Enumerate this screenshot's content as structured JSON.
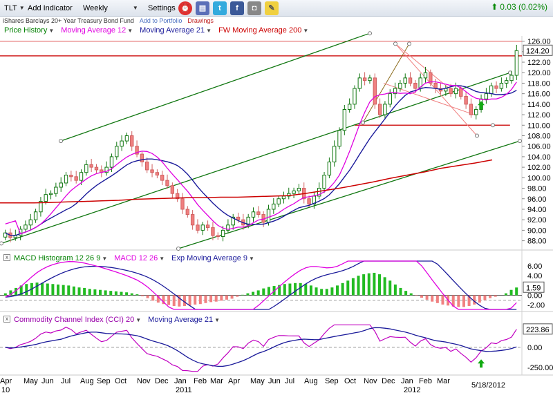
{
  "toolbar": {
    "symbol": "TLT",
    "add_indicator": "Add Indicator",
    "period": "Weekly",
    "settings": "Settings",
    "change": "0.03 (0.02%)"
  },
  "subbar": {
    "fund_name": "iShares Barclays 20+ Year Treasury Bond Fund",
    "add_portfolio": "Add to Portfolio",
    "drawings": "Drawings"
  },
  "legend_main": [
    "Price History",
    "Moving Average 12",
    "Moving Average 21",
    "FW Moving Average 200"
  ],
  "legend_macd": [
    "MACD Histogram 12 26 9",
    "MACD 12 26",
    "Exp Moving Average 9"
  ],
  "legend_cci": [
    "Commodity Channel Index (CCI) 20",
    "Moving Average 21"
  ],
  "panel_boxes": {
    "macd": "x",
    "cci": "x"
  },
  "colors": {
    "price": "#008000",
    "ma12": "#e000e0",
    "ma21": "#1a1a9a",
    "ma200": "#cc0000",
    "up_candle": "#22aa22",
    "down_candle": "#f08080",
    "histogram_up": "#22bb22",
    "histogram_down": "#f08080"
  },
  "chart_data": [
    {
      "type": "candlestick",
      "title": "Price History",
      "y_ticks": [
        88,
        90,
        92,
        94,
        96,
        98,
        100,
        102,
        104,
        106,
        108,
        110,
        112,
        114,
        116,
        118,
        120,
        122,
        124,
        126
      ],
      "ylim": [
        86.5,
        127
      ],
      "last_price": "124.20",
      "x_labels": [
        "Apr",
        "May",
        "Jun",
        "Jul",
        "Aug",
        "Sep",
        "Oct",
        "Nov",
        "Dec",
        "Jan",
        "Feb",
        "Mar",
        "Apr",
        "May",
        "Jun",
        "Jul",
        "Aug",
        "Sep",
        "Oct",
        "Nov",
        "Dec",
        "Jan",
        "Feb",
        "Mar"
      ],
      "years": [
        "10",
        "2011",
        "2012"
      ],
      "date_flag": "5/18/2012",
      "closes": [
        89.5,
        88.6,
        89.0,
        90.2,
        91.0,
        92.0,
        93.5,
        95.5,
        96.8,
        97.0,
        98.2,
        99.0,
        100.5,
        100.2,
        99.5,
        101.0,
        102.5,
        102.0,
        101.5,
        101.0,
        102.0,
        104.0,
        106.0,
        107.0,
        108.0,
        106.0,
        104.5,
        103.0,
        101.5,
        101.0,
        100.5,
        99.5,
        98.5,
        97.0,
        96.0,
        94.0,
        93.0,
        91.0,
        90.0,
        91.0,
        90.5,
        89.0,
        88.8,
        90.0,
        91.0,
        92.5,
        92.0,
        91.0,
        92.5,
        93.5,
        93.0,
        91.5,
        94.0,
        95.0,
        96.0,
        96.5,
        97.0,
        97.5,
        98.0,
        96.0,
        95.0,
        96.5,
        98.0,
        100.5,
        103.0,
        106.0,
        109.0,
        113.0,
        114.0,
        117.0,
        119.0,
        118.5,
        119.0,
        114.0,
        112.0,
        114.0,
        116.0,
        117.0,
        118.0,
        119.0,
        118.0,
        117.0,
        119.0,
        120.0,
        118.0,
        117.0,
        116.5,
        117.0,
        116.0,
        117.0,
        115.5,
        114.0,
        112.0,
        113.0,
        115.0,
        116.0,
        117.5,
        117.0,
        118.0,
        118.5,
        119.5,
        124.2
      ],
      "ma12_start": 91.2,
      "ma200": [
        95.2,
        95.2,
        95.2,
        95.3,
        95.4,
        95.5,
        95.6,
        95.7,
        95.9,
        96.0,
        96.1,
        96.2,
        96.2,
        96.3,
        96.3,
        96.4,
        96.5,
        96.6,
        97.0,
        97.5,
        98.0,
        98.6,
        99.2,
        99.9,
        100.5,
        101.1,
        101.8,
        102.3,
        102.8,
        103.4
      ]
    },
    {
      "type": "bar",
      "title": "MACD Histogram 12 26 9",
      "y_ticks": [
        6.0,
        4.0,
        2.0,
        0.0,
        -2.0
      ],
      "ylim": [
        -2.9,
        7
      ],
      "last_value": "1.59",
      "series": [
        {
          "name": "MACD Histogram",
          "values": [
            0.4,
            1.0,
            1.5,
            2.0,
            2.3,
            2.5,
            2.6,
            2.5,
            2.4,
            2.3,
            2.2,
            2.1,
            2.0,
            1.8,
            1.6,
            1.5,
            1.3,
            1.2,
            1.1,
            1.0,
            0.9,
            0.8,
            0.7,
            0.6,
            0.4,
            0.2,
            -0.2,
            -0.6,
            -1.1,
            -1.5,
            -1.8,
            -2.0,
            -2.2,
            -2.3,
            -2.2,
            -2.1,
            -1.9,
            -1.8,
            -1.6,
            -1.4,
            -1.3,
            -1.1,
            -0.9,
            -0.7,
            -0.3,
            0.1,
            0.4,
            0.7,
            1.0,
            1.4,
            1.7,
            1.9,
            2.1,
            2.3,
            2.4,
            2.5,
            2.5,
            2.3,
            2.0,
            1.6,
            1.3,
            1.3,
            1.6,
            2.0,
            2.5,
            3.0,
            3.5,
            4.0,
            4.3,
            4.5,
            4.6,
            4.3,
            3.7,
            3.0,
            2.2,
            1.5,
            0.9,
            0.4,
            -0.1,
            -0.5,
            -0.9,
            -1.3,
            -1.6,
            -1.9,
            -2.1,
            -2.3,
            -2.4,
            -2.4,
            -2.2,
            -1.9,
            -1.5,
            -1.0,
            -0.6,
            -0.3,
            0.0,
            0.4,
            1.1,
            1.59
          ]
        }
      ]
    },
    {
      "type": "line",
      "title": "Commodity Channel Index (CCI) 20",
      "y_ticks": [
        0.0,
        -250.0
      ],
      "ylim": [
        -320,
        300
      ],
      "last_value": "223.86"
    }
  ]
}
